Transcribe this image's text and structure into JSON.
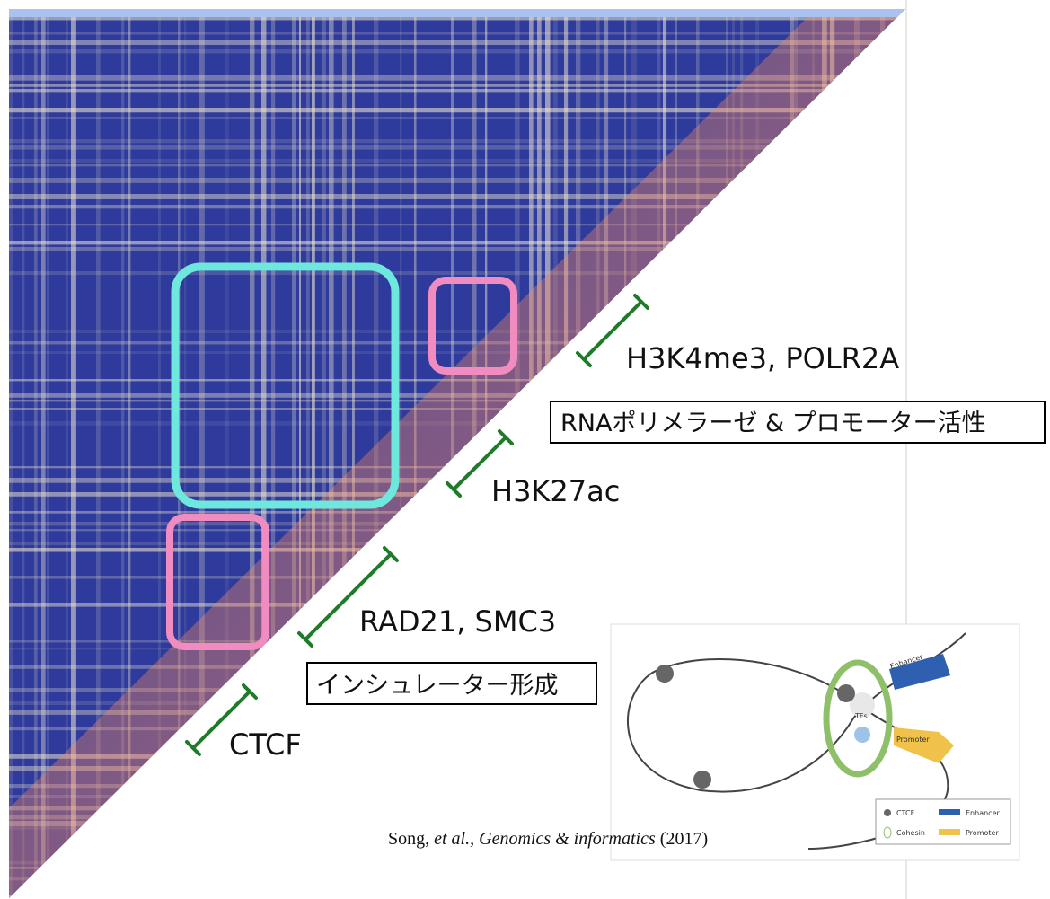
{
  "annotations": [
    {
      "label": "H3K4me3, POLR2A"
    },
    {
      "label": "H3K27ac"
    },
    {
      "label": "RAD21, SMC3"
    },
    {
      "label": "CTCF"
    }
  ],
  "boxed_notes": [
    "RNAポリメラーゼ & プロモーター活性",
    "インシュレーター形成"
  ],
  "citation": {
    "author": "Song,",
    "etal": "et al.,",
    "journal": "Genomics & informatics",
    "year": "(2017)"
  },
  "inset": {
    "enhancer": "Enhancer",
    "tfs": "TFs",
    "promoter": "Promoter",
    "legend": [
      "CTCF",
      "Enhancer",
      "Cohesin",
      "Promoter"
    ]
  }
}
